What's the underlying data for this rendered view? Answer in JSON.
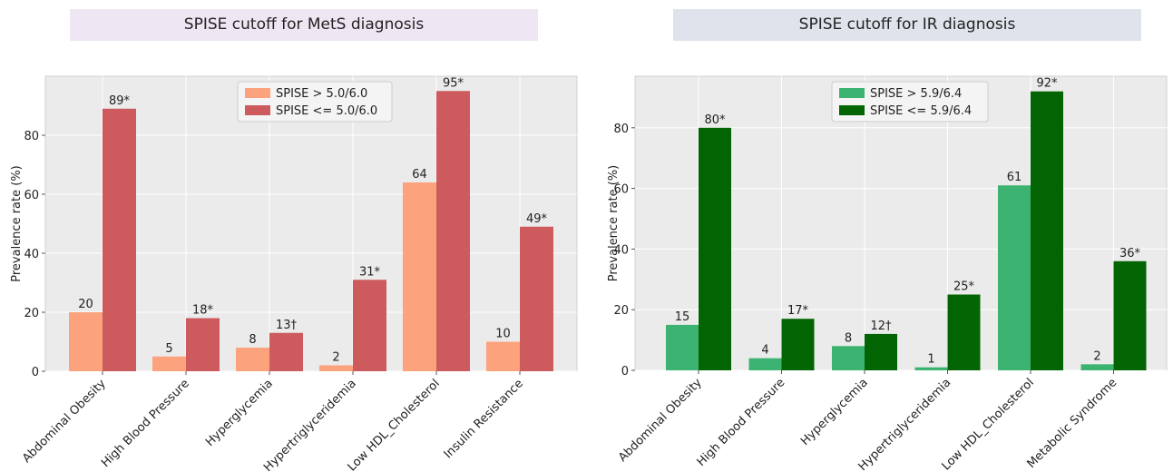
{
  "chart_data": [
    {
      "type": "bar",
      "title": "SPISE cutoff for MetS diagnosis",
      "title_bg": "#efe6f3",
      "ylabel": "Prevalence rate (%)",
      "ylim": [
        0,
        100
      ],
      "yticks": [
        "0",
        "20",
        "40",
        "60",
        "80"
      ],
      "grid": true,
      "legend_position": "top-center",
      "categories": [
        "Abdominal Obesity",
        "High Blood Pressure",
        "Hyperglycemia",
        "Hypertriglyceridemia",
        "Low HDL_Cholesterol",
        "Insulin Resistance"
      ],
      "series": [
        {
          "name": "SPISE > 5.0/6.0",
          "color": "#fca27c",
          "values": [
            20,
            5,
            8,
            2,
            64,
            10
          ],
          "labels": [
            "20",
            "5",
            "8",
            "2",
            "64",
            "10"
          ]
        },
        {
          "name": "SPISE <= 5.0/6.0",
          "color": "#cd5b5e",
          "values": [
            89,
            18,
            13,
            31,
            95,
            49
          ],
          "labels": [
            "89*",
            "18*",
            "13†",
            "31*",
            "95*",
            "49*"
          ]
        }
      ]
    },
    {
      "type": "bar",
      "title": "SPISE cutoff for IR diagnosis",
      "title_bg": "#dfe4ec",
      "ylabel": "Prevalence rate (%)",
      "ylim": [
        0,
        97
      ],
      "yticks": [
        "0",
        "20",
        "40",
        "60",
        "80"
      ],
      "grid": true,
      "legend_position": "top-center",
      "categories": [
        "Abdominal Obesity",
        "High Blood Pressure",
        "Hyperglycemia",
        "Hypertriglyceridemia",
        "Low HDL_Cholesterol",
        "Metabolic Syndrome"
      ],
      "series": [
        {
          "name": "SPISE > 5.9/6.4",
          "color": "#3cb371",
          "values": [
            15,
            4,
            8,
            1,
            61,
            2
          ],
          "labels": [
            "15",
            "4",
            "8",
            "1",
            "61",
            "2"
          ]
        },
        {
          "name": "SPISE <= 5.9/6.4",
          "color": "#026402",
          "values": [
            80,
            17,
            12,
            25,
            92,
            36
          ],
          "labels": [
            "80*",
            "17*",
            "12†",
            "25*",
            "92*",
            "36*"
          ]
        }
      ]
    }
  ]
}
